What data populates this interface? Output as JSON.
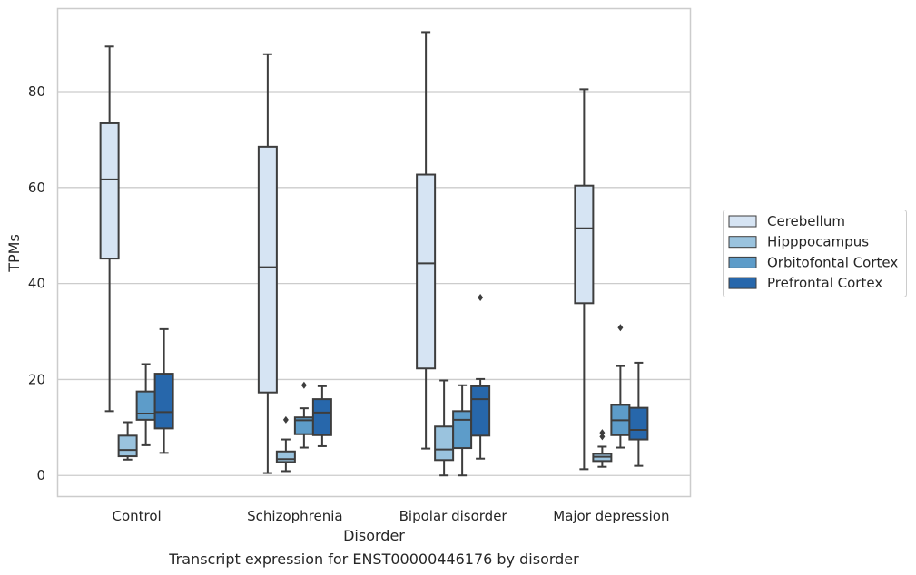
{
  "chart_data": {
    "type": "box",
    "title": "",
    "caption": "Transcript expression for ENST00000446176 by disorder",
    "xlabel": "Disorder",
    "ylabel": "TPMs",
    "ylim": [
      -4.4,
      97.3
    ],
    "yticks": [
      0,
      20,
      40,
      60,
      80
    ],
    "grid": "horizontal",
    "legend_position": "right",
    "categories": [
      "Control",
      "Schizophrenia",
      "Bipolar disorder",
      "Major depression"
    ],
    "series": [
      {
        "name": "Cerebellum",
        "color": "#d6e4f3",
        "boxes": [
          {
            "whisker_low": 13.4,
            "q1": 45.2,
            "median": 61.7,
            "q3": 73.4,
            "whisker_high": 89.4,
            "outliers": []
          },
          {
            "whisker_low": 0.5,
            "q1": 17.3,
            "median": 43.4,
            "q3": 68.5,
            "whisker_high": 87.8,
            "outliers": []
          },
          {
            "whisker_low": 5.6,
            "q1": 22.3,
            "median": 44.2,
            "q3": 62.7,
            "whisker_high": 92.4,
            "outliers": []
          },
          {
            "whisker_low": 1.3,
            "q1": 35.9,
            "median": 51.5,
            "q3": 60.4,
            "whisker_high": 80.5,
            "outliers": []
          }
        ]
      },
      {
        "name": "Hipppocampus",
        "color": "#9ac3de",
        "boxes": [
          {
            "whisker_low": 3.3,
            "q1": 4.0,
            "median": 5.3,
            "q3": 8.3,
            "whisker_high": 11.1,
            "outliers": []
          },
          {
            "whisker_low": 0.9,
            "q1": 2.8,
            "median": 3.4,
            "q3": 5.0,
            "whisker_high": 7.5,
            "outliers": [
              11.6
            ]
          },
          {
            "whisker_low": 0.0,
            "q1": 3.2,
            "median": 5.4,
            "q3": 10.2,
            "whisker_high": 19.8,
            "outliers": []
          },
          {
            "whisker_low": 1.8,
            "q1": 3.0,
            "median": 3.9,
            "q3": 4.5,
            "whisker_high": 6.0,
            "outliers": [
              8.1,
              8.9
            ]
          }
        ]
      },
      {
        "name": "Orbitofontal Cortex",
        "color": "#5d9cc9",
        "boxes": [
          {
            "whisker_low": 6.3,
            "q1": 11.6,
            "median": 12.9,
            "q3": 17.5,
            "whisker_high": 23.2,
            "outliers": []
          },
          {
            "whisker_low": 5.8,
            "q1": 8.6,
            "median": 11.5,
            "q3": 12.1,
            "whisker_high": 14.0,
            "outliers": [
              18.8
            ]
          },
          {
            "whisker_low": 0.0,
            "q1": 5.7,
            "median": 11.6,
            "q3": 13.4,
            "whisker_high": 18.8,
            "outliers": []
          },
          {
            "whisker_low": 5.8,
            "q1": 8.4,
            "median": 11.5,
            "q3": 14.7,
            "whisker_high": 22.8,
            "outliers": [
              30.8
            ]
          }
        ]
      },
      {
        "name": "Prefrontal Cortex",
        "color": "#2767ab",
        "boxes": [
          {
            "whisker_low": 4.7,
            "q1": 9.8,
            "median": 13.2,
            "q3": 21.2,
            "whisker_high": 30.5,
            "outliers": []
          },
          {
            "whisker_low": 6.1,
            "q1": 8.4,
            "median": 13.1,
            "q3": 15.9,
            "whisker_high": 18.6,
            "outliers": []
          },
          {
            "whisker_low": 3.5,
            "q1": 8.3,
            "median": 15.9,
            "q3": 18.6,
            "whisker_high": 20.1,
            "outliers": [
              37.1
            ]
          },
          {
            "whisker_low": 2.0,
            "q1": 7.5,
            "median": 9.5,
            "q3": 14.1,
            "whisker_high": 23.5,
            "outliers": []
          }
        ]
      }
    ]
  },
  "colors": {
    "edge": "#3d3d3d",
    "grid": "#cccccc",
    "frame": "#cccccc"
  }
}
